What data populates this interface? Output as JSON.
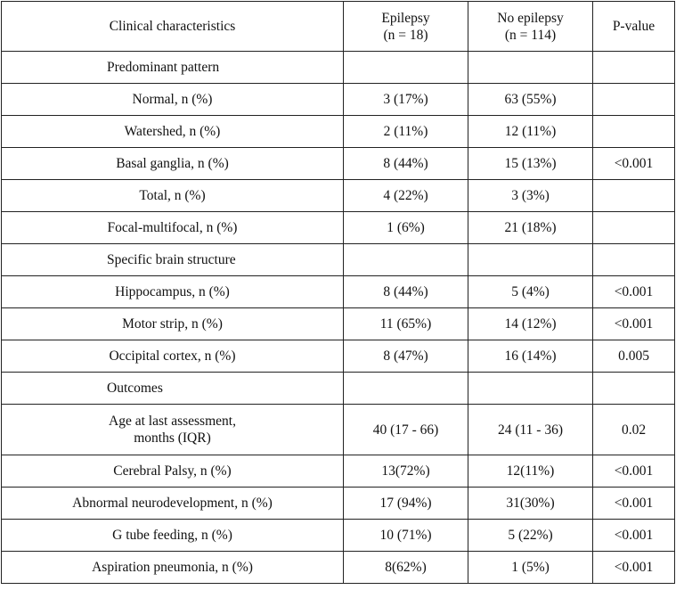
{
  "table": {
    "header": [
      "Clinical characteristics",
      [
        "Epilepsy",
        "(n = 18)"
      ],
      [
        "No epilepsy",
        "(n = 114)"
      ],
      "P-value"
    ],
    "rows": [
      [
        "Predominant pattern"
      ],
      [
        "Normal, n (%)",
        "3 (17%)",
        "63 (55%)"
      ],
      [
        "Watershed, n (%)",
        "2 (11%)",
        "12 (11%)"
      ],
      [
        "Basal ganglia, n (%)",
        "8 (44%)",
        "15 (13%)",
        "<0.001"
      ],
      [
        "Total, n (%)",
        "4 (22%)",
        "3 (3%)"
      ],
      [
        "Focal-multifocal, n (%)",
        "1 (6%)",
        "21 (18%)"
      ],
      [
        "Specific brain structure"
      ],
      [
        "Hippocampus, n (%)",
        "8 (44%)",
        "5 (4%)",
        "<0.001"
      ],
      [
        "Motor strip, n (%)",
        "11 (65%)",
        "14 (12%)",
        "<0.001"
      ],
      [
        "Occipital cortex, n (%)",
        "8 (47%)",
        "16 (14%)",
        "0.005"
      ],
      [
        "Outcomes"
      ],
      [
        [
          "Age at last assessment,",
          "months (IQR)"
        ],
        "40 (17 - 66)",
        "24 (11 - 36)",
        "0.02"
      ],
      [
        "Cerebral Palsy, n (%)",
        "13(72%)",
        "12(11%)",
        "<0.001"
      ],
      [
        "Abnormal neurodevelopment, n (%)",
        "17 (94%)",
        "31(30%)",
        "<0.001"
      ],
      [
        "G tube feeding, n (%)",
        "10 (71%)",
        "5 (22%)",
        "<0.001"
      ],
      [
        "Aspiration pneumonia, n (%)",
        "8(62%)",
        "1 (5%)",
        "<0.001"
      ]
    ]
  }
}
